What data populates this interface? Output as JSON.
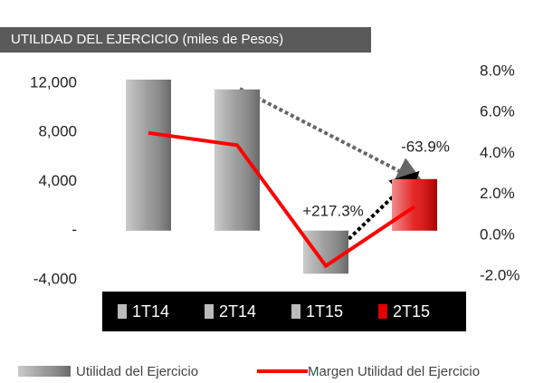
{
  "chart_data": {
    "type": "bar",
    "title": "UTILIDAD DEL EJERCICIO (miles de Pesos)",
    "categories": [
      "1T14",
      "2T14",
      "1T15",
      "2T15"
    ],
    "series": [
      {
        "name": "Utilidad del Ejercicio",
        "type": "bar",
        "colors": [
          "#8a8a8a",
          "#8a8a8a",
          "#8a8a8a",
          "#e00000"
        ],
        "values": [
          12300,
          11500,
          -3500,
          4200
        ]
      },
      {
        "name": "Margen Utilidad del Ejercicio",
        "type": "line",
        "axis": "y2",
        "color": "#ff0000",
        "values": [
          5.0,
          4.4,
          -1.5,
          1.4
        ]
      }
    ],
    "ylim": [
      -4000,
      12000
    ],
    "yticks": [
      {
        "value": -4000,
        "label": "-4,000"
      },
      {
        "value": 0,
        "label": "-"
      },
      {
        "value": 4000,
        "label": "4,000"
      },
      {
        "value": 8000,
        "label": "8,000"
      },
      {
        "value": 12000,
        "label": "12,000"
      }
    ],
    "y2lim": [
      -2,
      8
    ],
    "y2ticks": [
      {
        "value": -2,
        "label": "-2.0%"
      },
      {
        "value": 0,
        "label": "0.0%"
      },
      {
        "value": 2,
        "label": "2.0%"
      },
      {
        "value": 4,
        "label": "4.0%"
      },
      {
        "value": 6,
        "label": "6.0%"
      },
      {
        "value": 8,
        "label": "8.0%"
      }
    ],
    "annotations": [
      "+217.3%",
      "-63.9%"
    ]
  }
}
